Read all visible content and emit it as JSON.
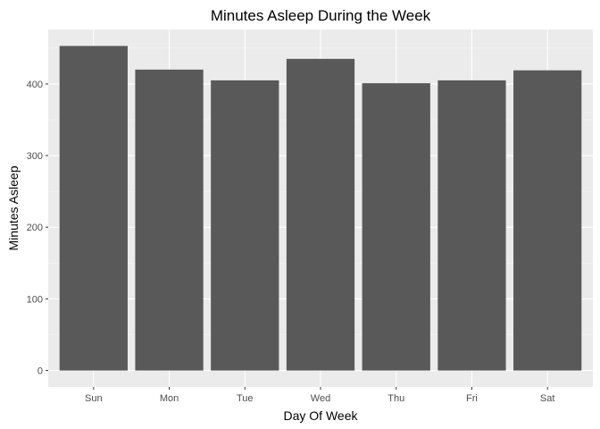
{
  "chart_data": {
    "type": "bar",
    "title": "Minutes Asleep During the Week",
    "xlabel": "Day Of Week",
    "ylabel": "Minutes Asleep",
    "categories": [
      "Sun",
      "Mon",
      "Tue",
      "Wed",
      "Thu",
      "Fri",
      "Sat"
    ],
    "values": [
      453,
      420,
      405,
      435,
      401,
      405,
      419
    ],
    "ylim": [
      -23,
      476
    ],
    "yticks": [
      0,
      100,
      200,
      300,
      400
    ],
    "ytick_labels": [
      "0",
      "100",
      "200",
      "300",
      "400"
    ],
    "grid": true,
    "legend": "none",
    "colors": {
      "bar": "#595959",
      "panel_background": "#ebebeb",
      "major_grid": "#ffffff",
      "minor_grid": "#f5f5f5",
      "tick_label": "#4d4d4d"
    }
  }
}
